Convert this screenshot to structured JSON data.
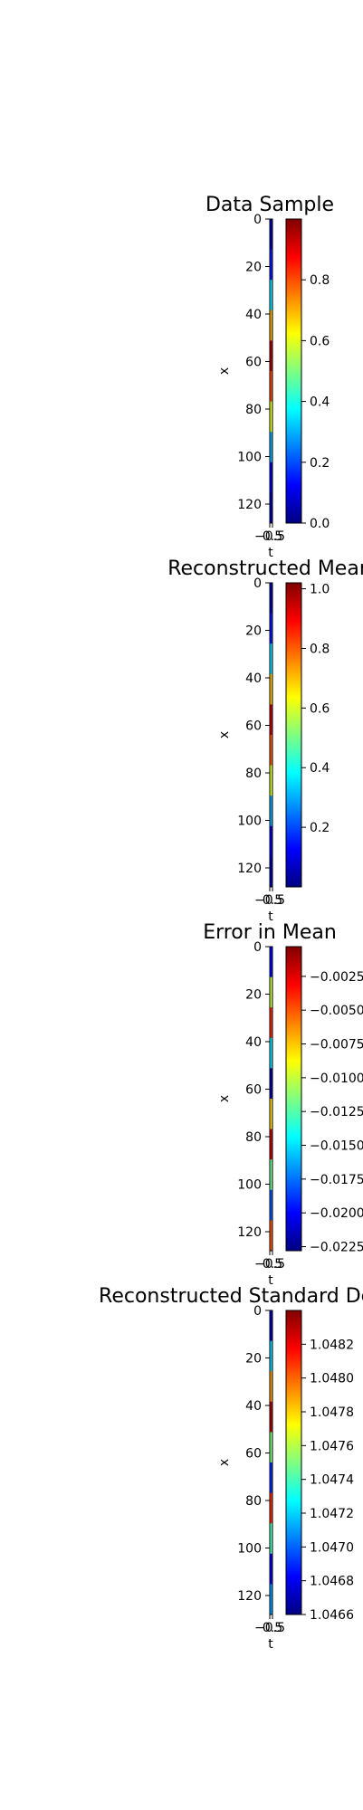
{
  "chart_data": [
    {
      "type": "heatmap",
      "title": "Data Sample",
      "xlabel": "t",
      "ylabel": "x",
      "x_ticks": [
        "−0.5",
        "0.5"
      ],
      "y_ticks": [
        "0",
        "20",
        "40",
        "60",
        "80",
        "100",
        "120"
      ],
      "y_range": [
        0,
        128
      ],
      "colormap": "jet",
      "colorbar_range": [
        0.0,
        1.0
      ],
      "colorbar_ticks": [
        "0.0",
        "0.2",
        "0.4",
        "0.6",
        "0.8"
      ],
      "strip_values": [
        0.05,
        0.15,
        0.35,
        0.7,
        0.95,
        0.8,
        0.6,
        0.3,
        0.1,
        0.05
      ]
    },
    {
      "type": "heatmap",
      "title": "Reconstructed Mean",
      "xlabel": "t",
      "ylabel": "x",
      "x_ticks": [
        "−0.5",
        "0.5"
      ],
      "y_ticks": [
        "0",
        "20",
        "40",
        "60",
        "80",
        "100",
        "120"
      ],
      "y_range": [
        0,
        128
      ],
      "colormap": "jet",
      "colorbar_range": [
        0.0,
        1.02
      ],
      "colorbar_ticks": [
        "0.2",
        "0.4",
        "0.6",
        "0.8",
        "1.0"
      ],
      "strip_values": [
        0.05,
        0.15,
        0.35,
        0.7,
        0.95,
        0.8,
        0.6,
        0.3,
        0.1,
        0.05
      ]
    },
    {
      "type": "heatmap",
      "title": "Error in Mean",
      "xlabel": "t",
      "ylabel": "x",
      "x_ticks": [
        "−0.5",
        "0.5"
      ],
      "y_ticks": [
        "0",
        "20",
        "40",
        "60",
        "80",
        "100",
        "120"
      ],
      "y_range": [
        0,
        128
      ],
      "colormap": "jet",
      "colorbar_range": [
        -0.0228,
        -0.0003
      ],
      "colorbar_ticks": [
        "−0.0025",
        "−0.0050",
        "−0.0075",
        "−0.0100",
        "−0.0125",
        "−0.0150",
        "−0.0175",
        "−0.0200",
        "−0.0225"
      ],
      "strip_values": [
        -0.02,
        -0.01,
        -0.004,
        -0.015,
        -0.022,
        -0.008,
        -0.002,
        -0.012,
        -0.018,
        -0.005
      ]
    },
    {
      "type": "heatmap",
      "title": "Reconstructed Standard Deviation",
      "xlabel": "t",
      "ylabel": "x",
      "x_ticks": [
        "−0.5",
        "0.5"
      ],
      "y_ticks": [
        "0",
        "20",
        "40",
        "60",
        "80",
        "100",
        "120"
      ],
      "y_range": [
        0,
        128
      ],
      "colormap": "jet",
      "colorbar_range": [
        1.0466,
        1.0484
      ],
      "colorbar_ticks": [
        "1.0466",
        "1.0468",
        "1.0470",
        "1.0472",
        "1.0474",
        "1.0476",
        "1.0478",
        "1.0480",
        "1.0482"
      ],
      "strip_values": [
        1.0467,
        1.0472,
        1.0479,
        1.0483,
        1.0475,
        1.0469,
        1.0481,
        1.0474,
        1.0468,
        1.0471
      ]
    }
  ]
}
